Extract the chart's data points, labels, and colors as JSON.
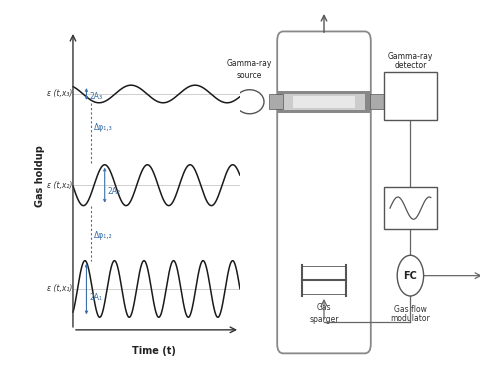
{
  "background_color": "#ffffff",
  "wave_color": "#1a1a1a",
  "annotation_color": "#3a6faa",
  "axis_color": "#333333",
  "component_edge": "#555555",
  "line_color": "#666666",
  "ylabel": "Gas holdup",
  "xlabel": "Time (t)",
  "label1": "ε (t,x₁)",
  "label2": "ε (t,x₂)",
  "label3": "ε (t,x₃)",
  "ann1": "2A₁",
  "ann2": "2A₂",
  "ann3": "2A₃",
  "ann_phase12": "Δφ₁,₂",
  "ann_phase13": "Δφ₁,₃",
  "text_gamma_source_1": "Gamma-ray",
  "text_gamma_source_2": "source",
  "text_gamma_det_1": "Gamma-ray",
  "text_gamma_det_2": "detector",
  "text_sparger_1": "Gas",
  "text_sparger_2": "sparger",
  "text_fc": "FC",
  "text_mod_1": "Gas flow",
  "text_mod_2": "modulator"
}
